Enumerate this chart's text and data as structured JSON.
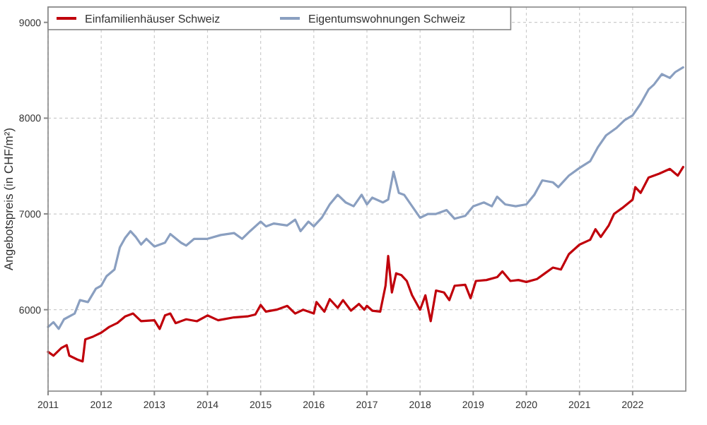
{
  "chart_data": {
    "type": "line",
    "ylabel": "Angebotspreis (in CHF/m²)",
    "xlim": [
      2011,
      2023
    ],
    "ylim": [
      5150,
      9160
    ],
    "xticks": [
      2011,
      2012,
      2013,
      2014,
      2015,
      2016,
      2017,
      2018,
      2019,
      2020,
      2021,
      2022
    ],
    "yticks": [
      6000,
      7000,
      8000,
      9000
    ],
    "grid": true,
    "legend": "top left",
    "line_style": "solid",
    "marker": "none",
    "series": [
      {
        "name": "Einfamilienhäuser Schweiz",
        "color": "#c0000b",
        "x": [
          2011.0,
          2011.1,
          2011.25,
          2011.35,
          2011.4,
          2011.55,
          2011.65,
          2011.7,
          2011.85,
          2012.0,
          2012.15,
          2012.3,
          2012.45,
          2012.6,
          2012.75,
          2013.0,
          2013.1,
          2013.2,
          2013.3,
          2013.4,
          2013.6,
          2013.8,
          2014.0,
          2014.2,
          2014.5,
          2014.75,
          2014.9,
          2015.0,
          2015.1,
          2015.3,
          2015.5,
          2015.65,
          2015.8,
          2016.0,
          2016.05,
          2016.2,
          2016.3,
          2016.45,
          2016.55,
          2016.7,
          2016.85,
          2016.95,
          2017.0,
          2017.1,
          2017.25,
          2017.35,
          2017.4,
          2017.47,
          2017.55,
          2017.65,
          2017.75,
          2017.85,
          2018.0,
          2018.1,
          2018.2,
          2018.3,
          2018.45,
          2018.55,
          2018.65,
          2018.85,
          2018.95,
          2019.05,
          2019.25,
          2019.45,
          2019.55,
          2019.7,
          2019.85,
          2020.0,
          2020.2,
          2020.35,
          2020.5,
          2020.65,
          2020.8,
          2021.0,
          2021.2,
          2021.3,
          2021.4,
          2021.55,
          2021.65,
          2021.8,
          2022.0,
          2022.05,
          2022.15,
          2022.3,
          2022.5,
          2022.7,
          2022.85,
          2022.95
        ],
        "values": [
          5560,
          5520,
          5600,
          5630,
          5520,
          5480,
          5460,
          5690,
          5720,
          5760,
          5820,
          5860,
          5930,
          5960,
          5880,
          5890,
          5800,
          5940,
          5960,
          5860,
          5900,
          5880,
          5940,
          5890,
          5920,
          5930,
          5950,
          6050,
          5980,
          6000,
          6040,
          5960,
          6000,
          5960,
          6080,
          5980,
          6110,
          6020,
          6100,
          5990,
          6060,
          6000,
          6040,
          5990,
          5980,
          6250,
          6560,
          6180,
          6380,
          6360,
          6300,
          6150,
          6000,
          6150,
          5880,
          6200,
          6180,
          6100,
          6250,
          6260,
          6120,
          6300,
          6310,
          6340,
          6400,
          6300,
          6310,
          6290,
          6320,
          6380,
          6440,
          6420,
          6580,
          6680,
          6730,
          6840,
          6760,
          6880,
          7000,
          7060,
          7150,
          7280,
          7220,
          7380,
          7420,
          7470,
          7400,
          7490
        ]
      },
      {
        "name": "Eigentumswohnungen Schweiz",
        "color": "#8a9fc0",
        "x": [
          2011.0,
          2011.1,
          2011.2,
          2011.3,
          2011.5,
          2011.6,
          2011.75,
          2011.9,
          2012.0,
          2012.1,
          2012.25,
          2012.35,
          2012.45,
          2012.55,
          2012.65,
          2012.75,
          2012.85,
          2013.0,
          2013.2,
          2013.3,
          2013.5,
          2013.6,
          2013.75,
          2014.0,
          2014.25,
          2014.5,
          2014.65,
          2014.8,
          2015.0,
          2015.1,
          2015.25,
          2015.5,
          2015.65,
          2015.75,
          2015.9,
          2016.0,
          2016.15,
          2016.3,
          2016.45,
          2016.6,
          2016.75,
          2016.9,
          2017.0,
          2017.1,
          2017.3,
          2017.4,
          2017.5,
          2017.6,
          2017.7,
          2017.85,
          2018.0,
          2018.15,
          2018.3,
          2018.5,
          2018.65,
          2018.85,
          2019.0,
          2019.2,
          2019.35,
          2019.45,
          2019.6,
          2019.8,
          2020.0,
          2020.15,
          2020.3,
          2020.5,
          2020.6,
          2020.8,
          2021.0,
          2021.2,
          2021.35,
          2021.5,
          2021.7,
          2021.85,
          2022.0,
          2022.15,
          2022.3,
          2022.4,
          2022.55,
          2022.7,
          2022.8,
          2022.95
        ],
        "values": [
          5820,
          5870,
          5800,
          5900,
          5960,
          6100,
          6080,
          6220,
          6250,
          6350,
          6420,
          6650,
          6750,
          6820,
          6760,
          6680,
          6740,
          6660,
          6700,
          6790,
          6700,
          6670,
          6740,
          6740,
          6780,
          6800,
          6740,
          6820,
          6920,
          6870,
          6900,
          6880,
          6940,
          6820,
          6920,
          6870,
          6960,
          7100,
          7200,
          7120,
          7080,
          7200,
          7100,
          7170,
          7120,
          7150,
          7440,
          7220,
          7200,
          7080,
          6960,
          7000,
          7000,
          7040,
          6950,
          6980,
          7080,
          7120,
          7080,
          7180,
          7100,
          7080,
          7100,
          7200,
          7350,
          7330,
          7280,
          7400,
          7480,
          7550,
          7700,
          7820,
          7900,
          7980,
          8030,
          8150,
          8300,
          8350,
          8460,
          8420,
          8480,
          8530
        ]
      }
    ]
  }
}
